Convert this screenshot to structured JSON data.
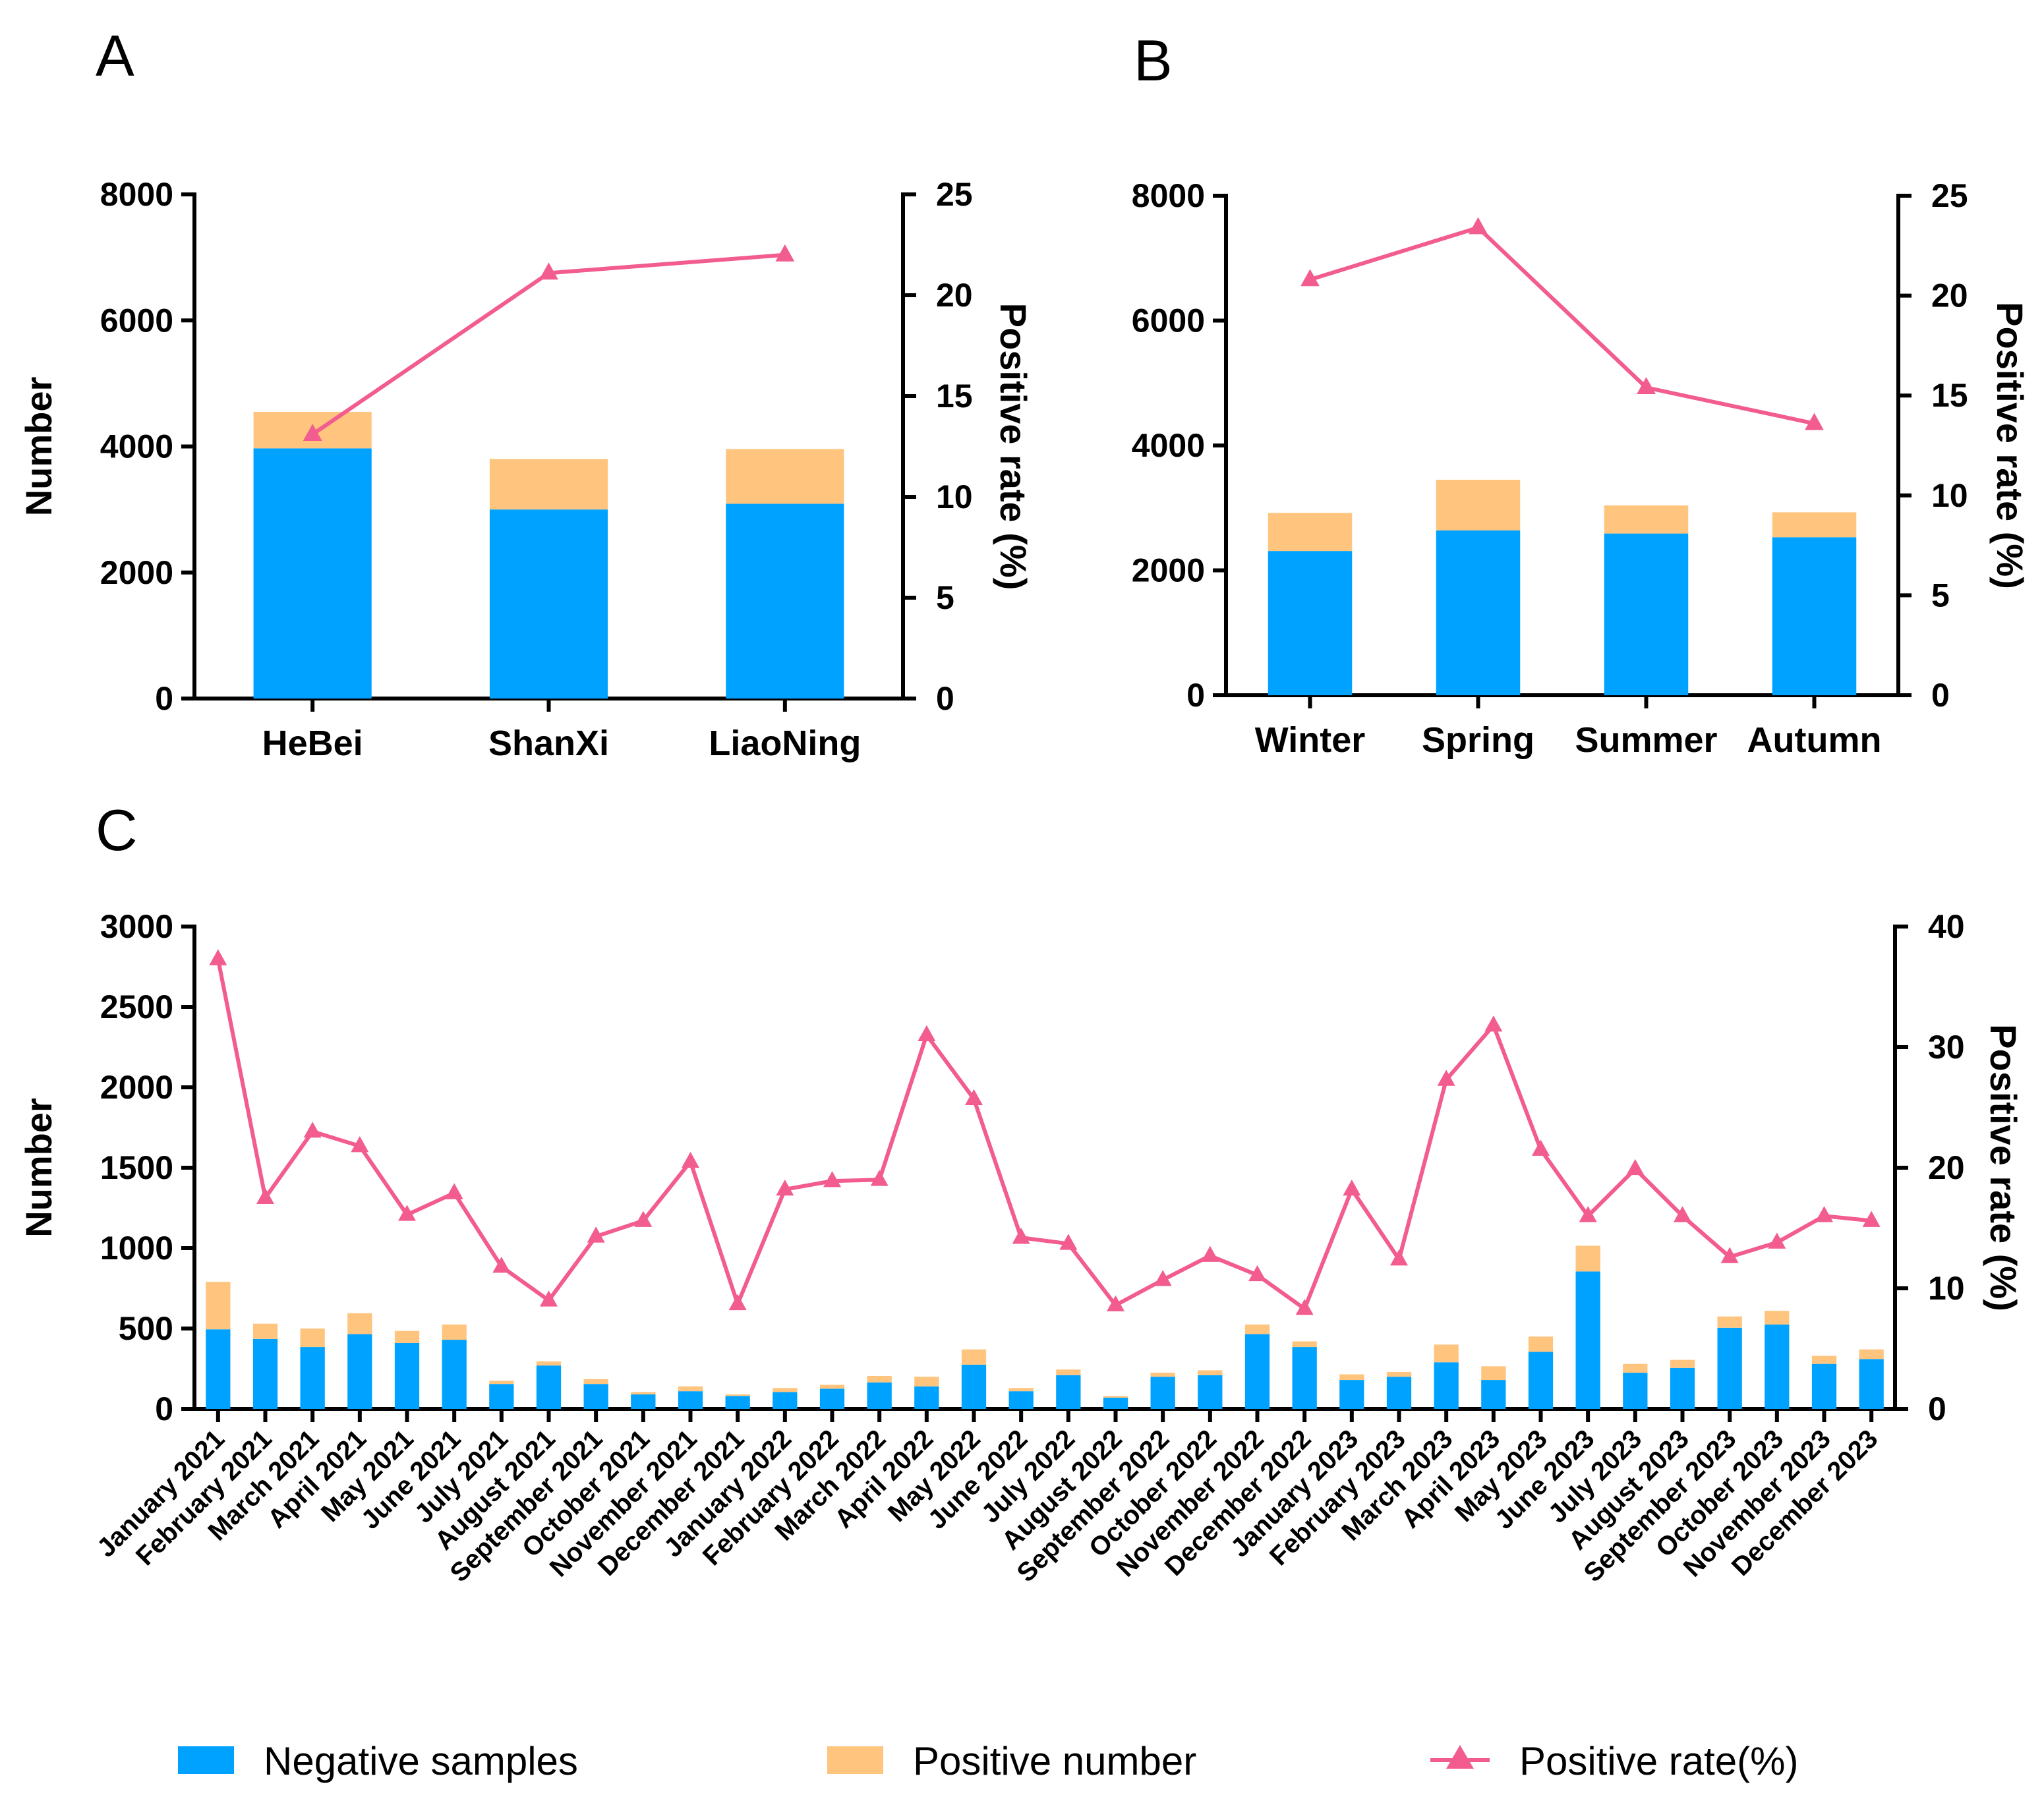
{
  "colors": {
    "negative": "#00A2FF",
    "positive": "#FFC47E",
    "rate": "#F25C8E"
  },
  "legend": {
    "negative_label": "Negative samples",
    "positive_label": "Positive number",
    "rate_label": "Positive rate(%)"
  },
  "chart_data": [
    {
      "panel": "A",
      "type": "bar",
      "stacked": true,
      "categories": [
        "HeBei",
        "ShanXi",
        "LiaoNing"
      ],
      "series": [
        {
          "name": "Negative samples",
          "values": [
            3970,
            3000,
            3090
          ]
        },
        {
          "name": "Positive number",
          "values": [
            580,
            800,
            870
          ]
        }
      ],
      "line": {
        "name": "Positive rate(%)",
        "values": [
          13.1,
          21.1,
          22.0
        ]
      },
      "ylabel": "Number",
      "y2label": "Positive rate (%)",
      "ylim": [
        0,
        8000
      ],
      "yticks": [
        "0",
        "2000",
        "4000",
        "6000",
        "8000"
      ],
      "y2lim": [
        0,
        25
      ],
      "y2ticks": [
        "0",
        "5",
        "10",
        "15",
        "20",
        "25"
      ]
    },
    {
      "panel": "B",
      "type": "bar",
      "stacked": true,
      "categories": [
        "Winter",
        "Spring",
        "Summer",
        "Autumn"
      ],
      "series": [
        {
          "name": "Negative samples",
          "values": [
            2310,
            2640,
            2590,
            2530
          ]
        },
        {
          "name": "Positive number",
          "values": [
            610,
            810,
            450,
            400
          ]
        }
      ],
      "line": {
        "name": "Positive rate(%)",
        "values": [
          20.8,
          23.4,
          15.4,
          13.6
        ]
      },
      "ylabel": "",
      "y2label": "Positive rate (%)",
      "ylim": [
        0,
        8000
      ],
      "yticks": [
        "0",
        "2000",
        "4000",
        "6000",
        "8000"
      ],
      "y2lim": [
        0,
        25
      ],
      "y2ticks": [
        "0",
        "5",
        "10",
        "15",
        "20",
        "25"
      ]
    },
    {
      "panel": "C",
      "type": "bar",
      "stacked": true,
      "categories": [
        "January 2021",
        "February 2021",
        "March 2021",
        "April 2021",
        "May 2021",
        "June 2021",
        "July 2021",
        "August 2021",
        "September 2021",
        "October 2021",
        "November 2021",
        "December 2021",
        "January 2022",
        "February 2022",
        "March 2022",
        "April 2022",
        "May 2022",
        "June 2022",
        "July 2022",
        "August 2022",
        "September 2022",
        "October 2022",
        "November 2022",
        "December 2022",
        "January 2023",
        "February 2023",
        "March 2023",
        "April 2023",
        "May 2023",
        "June 2023",
        "July 2023",
        "August 2023",
        "September 2023",
        "October 2023",
        "November 2023",
        "December 2023"
      ],
      "series": [
        {
          "name": "Negative samples",
          "values": [
            495,
            435,
            385,
            465,
            410,
            430,
            155,
            270,
            155,
            90,
            110,
            80,
            105,
            125,
            165,
            140,
            275,
            110,
            210,
            70,
            200,
            210,
            465,
            385,
            180,
            200,
            290,
            180,
            355,
            855,
            225,
            255,
            505,
            525,
            280,
            310
          ]
        },
        {
          "name": "Positive number",
          "values": [
            295,
            95,
            115,
            130,
            75,
            95,
            20,
            25,
            30,
            15,
            30,
            10,
            25,
            25,
            40,
            60,
            95,
            20,
            35,
            10,
            25,
            30,
            60,
            35,
            35,
            30,
            110,
            85,
            95,
            160,
            55,
            50,
            70,
            85,
            50,
            60
          ]
        },
        {
          "name": "Positive rate(%)",
          "values": [
            37.3,
            17.5,
            23.0,
            21.8,
            16.1,
            17.9,
            11.8,
            9.0,
            14.3,
            15.6,
            20.5,
            8.7,
            18.2,
            18.9,
            19.0,
            31.0,
            25.7,
            14.2,
            13.7,
            8.6,
            10.7,
            12.7,
            11.1,
            8.3,
            18.2,
            12.4,
            27.3,
            31.8,
            21.5,
            16.0,
            19.9,
            16.0,
            12.6,
            13.8,
            16.0,
            15.6
          ]
        }
      ],
      "ylabel": "Number",
      "y2label": "Positive rate (%)",
      "ylim": [
        0,
        3000
      ],
      "yticks": [
        "0",
        "500",
        "1000",
        "1500",
        "2000",
        "2500",
        "3000"
      ],
      "y2lim": [
        0,
        40
      ],
      "y2ticks": [
        "0",
        "10",
        "20",
        "30",
        "40"
      ]
    }
  ]
}
